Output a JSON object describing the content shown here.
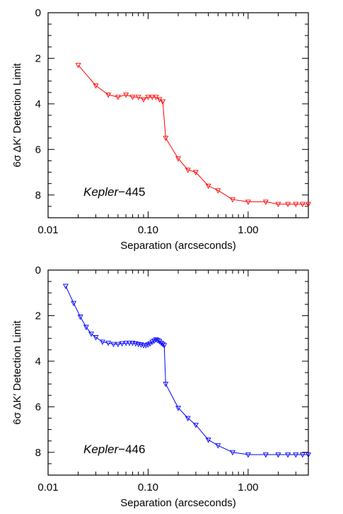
{
  "chart_data": [
    {
      "type": "line",
      "ylabel": "6σ ΔK′ Detection Limit",
      "xlabel": "Separation (arcseconds)",
      "annotation": {
        "name": "Kepler",
        "suffix": "−445"
      },
      "x_scale": "log",
      "xlim": [
        0.01,
        4.0
      ],
      "ylim": [
        0,
        9
      ],
      "y_inverted": true,
      "x_tick_labels": [
        "0.01",
        "0.10",
        "1.00"
      ],
      "y_tick_labels": [
        "0",
        "2",
        "4",
        "6",
        "8"
      ],
      "color": "#ff0000",
      "marker": "triangle-down",
      "x": [
        0.02,
        0.03,
        0.04,
        0.05,
        0.06,
        0.07,
        0.08,
        0.09,
        0.1,
        0.11,
        0.12,
        0.13,
        0.14,
        0.15,
        0.2,
        0.25,
        0.3,
        0.4,
        0.5,
        0.7,
        1.0,
        1.5,
        2.0,
        2.5,
        3.0,
        3.5,
        4.0
      ],
      "y": [
        2.3,
        3.2,
        3.6,
        3.7,
        3.6,
        3.7,
        3.7,
        3.8,
        3.7,
        3.7,
        3.7,
        3.8,
        3.9,
        5.5,
        6.4,
        6.9,
        7.0,
        7.6,
        7.8,
        8.2,
        8.3,
        8.3,
        8.4,
        8.4,
        8.4,
        8.4,
        8.4
      ]
    },
    {
      "type": "line",
      "ylabel": "6σ ΔK′ Detection Limit",
      "xlabel": "Separation (arcseconds)",
      "annotation": {
        "name": "Kepler",
        "suffix": "−446"
      },
      "x_scale": "log",
      "xlim": [
        0.01,
        4.0
      ],
      "ylim": [
        0,
        9
      ],
      "y_inverted": true,
      "x_tick_labels": [
        "0.01",
        "0.10",
        "1.00"
      ],
      "y_tick_labels": [
        "0",
        "2",
        "4",
        "6",
        "8"
      ],
      "color": "#0000ff",
      "marker": "triangle-down",
      "x": [
        0.015,
        0.018,
        0.021,
        0.024,
        0.027,
        0.03,
        0.035,
        0.04,
        0.045,
        0.05,
        0.055,
        0.06,
        0.065,
        0.07,
        0.075,
        0.08,
        0.085,
        0.09,
        0.095,
        0.1,
        0.105,
        0.11,
        0.115,
        0.12,
        0.125,
        0.13,
        0.135,
        0.14,
        0.145,
        0.15,
        0.2,
        0.25,
        0.3,
        0.4,
        0.5,
        0.7,
        1.0,
        1.5,
        2.0,
        2.5,
        3.0,
        3.5,
        4.0
      ],
      "y": [
        0.7,
        1.45,
        2.05,
        2.5,
        2.8,
        2.95,
        3.15,
        3.2,
        3.25,
        3.25,
        3.22,
        3.2,
        3.2,
        3.2,
        3.22,
        3.25,
        3.27,
        3.3,
        3.3,
        3.27,
        3.22,
        3.15,
        3.1,
        3.05,
        3.08,
        3.12,
        3.2,
        3.25,
        3.3,
        5.0,
        6.05,
        6.5,
        6.8,
        7.45,
        7.7,
        8.0,
        8.1,
        8.1,
        8.1,
        8.1,
        8.1,
        8.1,
        8.1
      ]
    }
  ]
}
